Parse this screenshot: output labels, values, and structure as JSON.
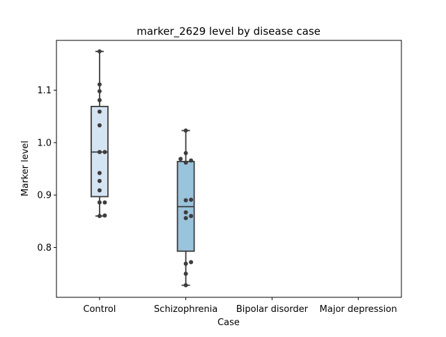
{
  "chart_data": {
    "type": "box",
    "title": "marker_2629 level by disease case",
    "xlabel": "Case",
    "ylabel": "Marker level",
    "categories": [
      "Control",
      "Schizophrenia",
      "Bipolar disorder",
      "Major depression"
    ],
    "ylim": [
      0.705,
      1.195
    ],
    "yticks": [
      0.8,
      0.9,
      1.0,
      1.1
    ],
    "ytick_labels": [
      "0.8",
      "0.9",
      "1.0",
      "1.1"
    ],
    "grid": false,
    "legend": "none",
    "box_colors": [
      "#d5e4f2",
      "#9ac3dc",
      "#5a9fcf",
      "#2e73b3"
    ],
    "series": [
      {
        "category": "Control",
        "whisker_low": 0.86,
        "q1": 0.897,
        "median": 0.982,
        "q3": 1.069,
        "whisker_high": 1.174,
        "points": [
          0.86,
          0.861,
          0.886,
          0.886,
          0.909,
          0.927,
          0.942,
          0.982,
          0.982,
          1.033,
          1.059,
          1.081,
          1.098,
          1.111,
          1.174
        ]
      },
      {
        "category": "Schizophrenia",
        "whisker_low": 0.728,
        "q1": 0.793,
        "median": 0.878,
        "q3": 0.964,
        "whisker_high": 1.023,
        "points": [
          0.728,
          0.75,
          0.769,
          0.772,
          0.856,
          0.86,
          0.867,
          0.89,
          0.891,
          0.962,
          0.966,
          0.969,
          0.98,
          1.023
        ]
      },
      {
        "category": "Bipolar disorder",
        "points": []
      },
      {
        "category": "Major depression",
        "points": []
      }
    ]
  }
}
